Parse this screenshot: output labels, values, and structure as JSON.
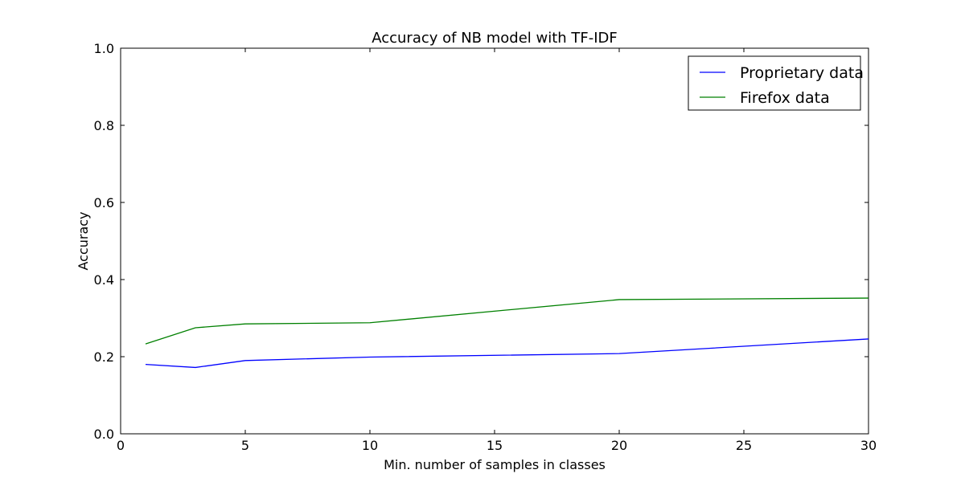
{
  "chart_data": {
    "type": "line",
    "title": "Accuracy of NB model with TF-IDF",
    "xlabel": "Min. number of samples in classes",
    "ylabel": "Accuracy",
    "xlim": [
      0,
      30
    ],
    "ylim": [
      0.0,
      1.0
    ],
    "xticks": [
      "0",
      "5",
      "10",
      "15",
      "20",
      "25",
      "30"
    ],
    "yticks": [
      "0.0",
      "0.2",
      "0.4",
      "0.6",
      "0.8",
      "1.0"
    ],
    "grid": false,
    "legend_position": "top-right",
    "x": [
      1,
      3,
      5,
      10,
      20,
      30
    ],
    "series": [
      {
        "name": "Proprietary data",
        "color": "#0000ff",
        "values": [
          0.18,
          0.172,
          0.19,
          0.199,
          0.208,
          0.246
        ]
      },
      {
        "name": "Firefox data",
        "color": "#008000",
        "values": [
          0.233,
          0.275,
          0.285,
          0.288,
          0.348,
          0.352
        ]
      }
    ]
  }
}
